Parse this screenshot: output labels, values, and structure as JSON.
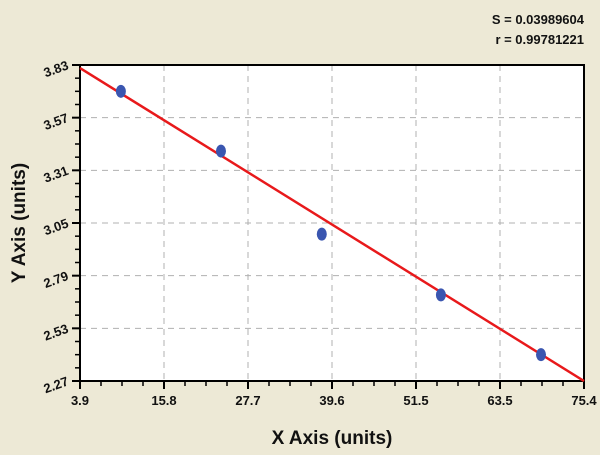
{
  "stats": {
    "s_label": "S = 0.03989604",
    "r_label": "r = 0.99781221"
  },
  "chart_data": {
    "type": "scatter",
    "title": "",
    "xlabel": "X Axis (units)",
    "ylabel": "Y Axis (units)",
    "xlim": [
      3.9,
      75.4
    ],
    "ylim": [
      2.27,
      3.83
    ],
    "xticks": [
      "3.9",
      "15.8",
      "27.7",
      "39.6",
      "51.5",
      "63.5",
      "75.4"
    ],
    "yticks": [
      "2.27",
      "2.53",
      "2.79",
      "3.05",
      "3.31",
      "3.57",
      "3.83"
    ],
    "grid": true,
    "points": [
      {
        "x": 9.7,
        "y": 3.7
      },
      {
        "x": 23.9,
        "y": 3.405
      },
      {
        "x": 38.2,
        "y": 2.995
      },
      {
        "x": 55.1,
        "y": 2.695
      },
      {
        "x": 69.3,
        "y": 2.4
      }
    ],
    "fit_line": {
      "x": [
        3.9,
        75.4
      ],
      "y": [
        3.815,
        2.27
      ]
    },
    "colors": {
      "points": "#3a56b0",
      "line": "#e8191b",
      "plot_bg": "#ffffff",
      "page_bg": "#ede9d6",
      "grid": "#b0b0b0"
    }
  }
}
